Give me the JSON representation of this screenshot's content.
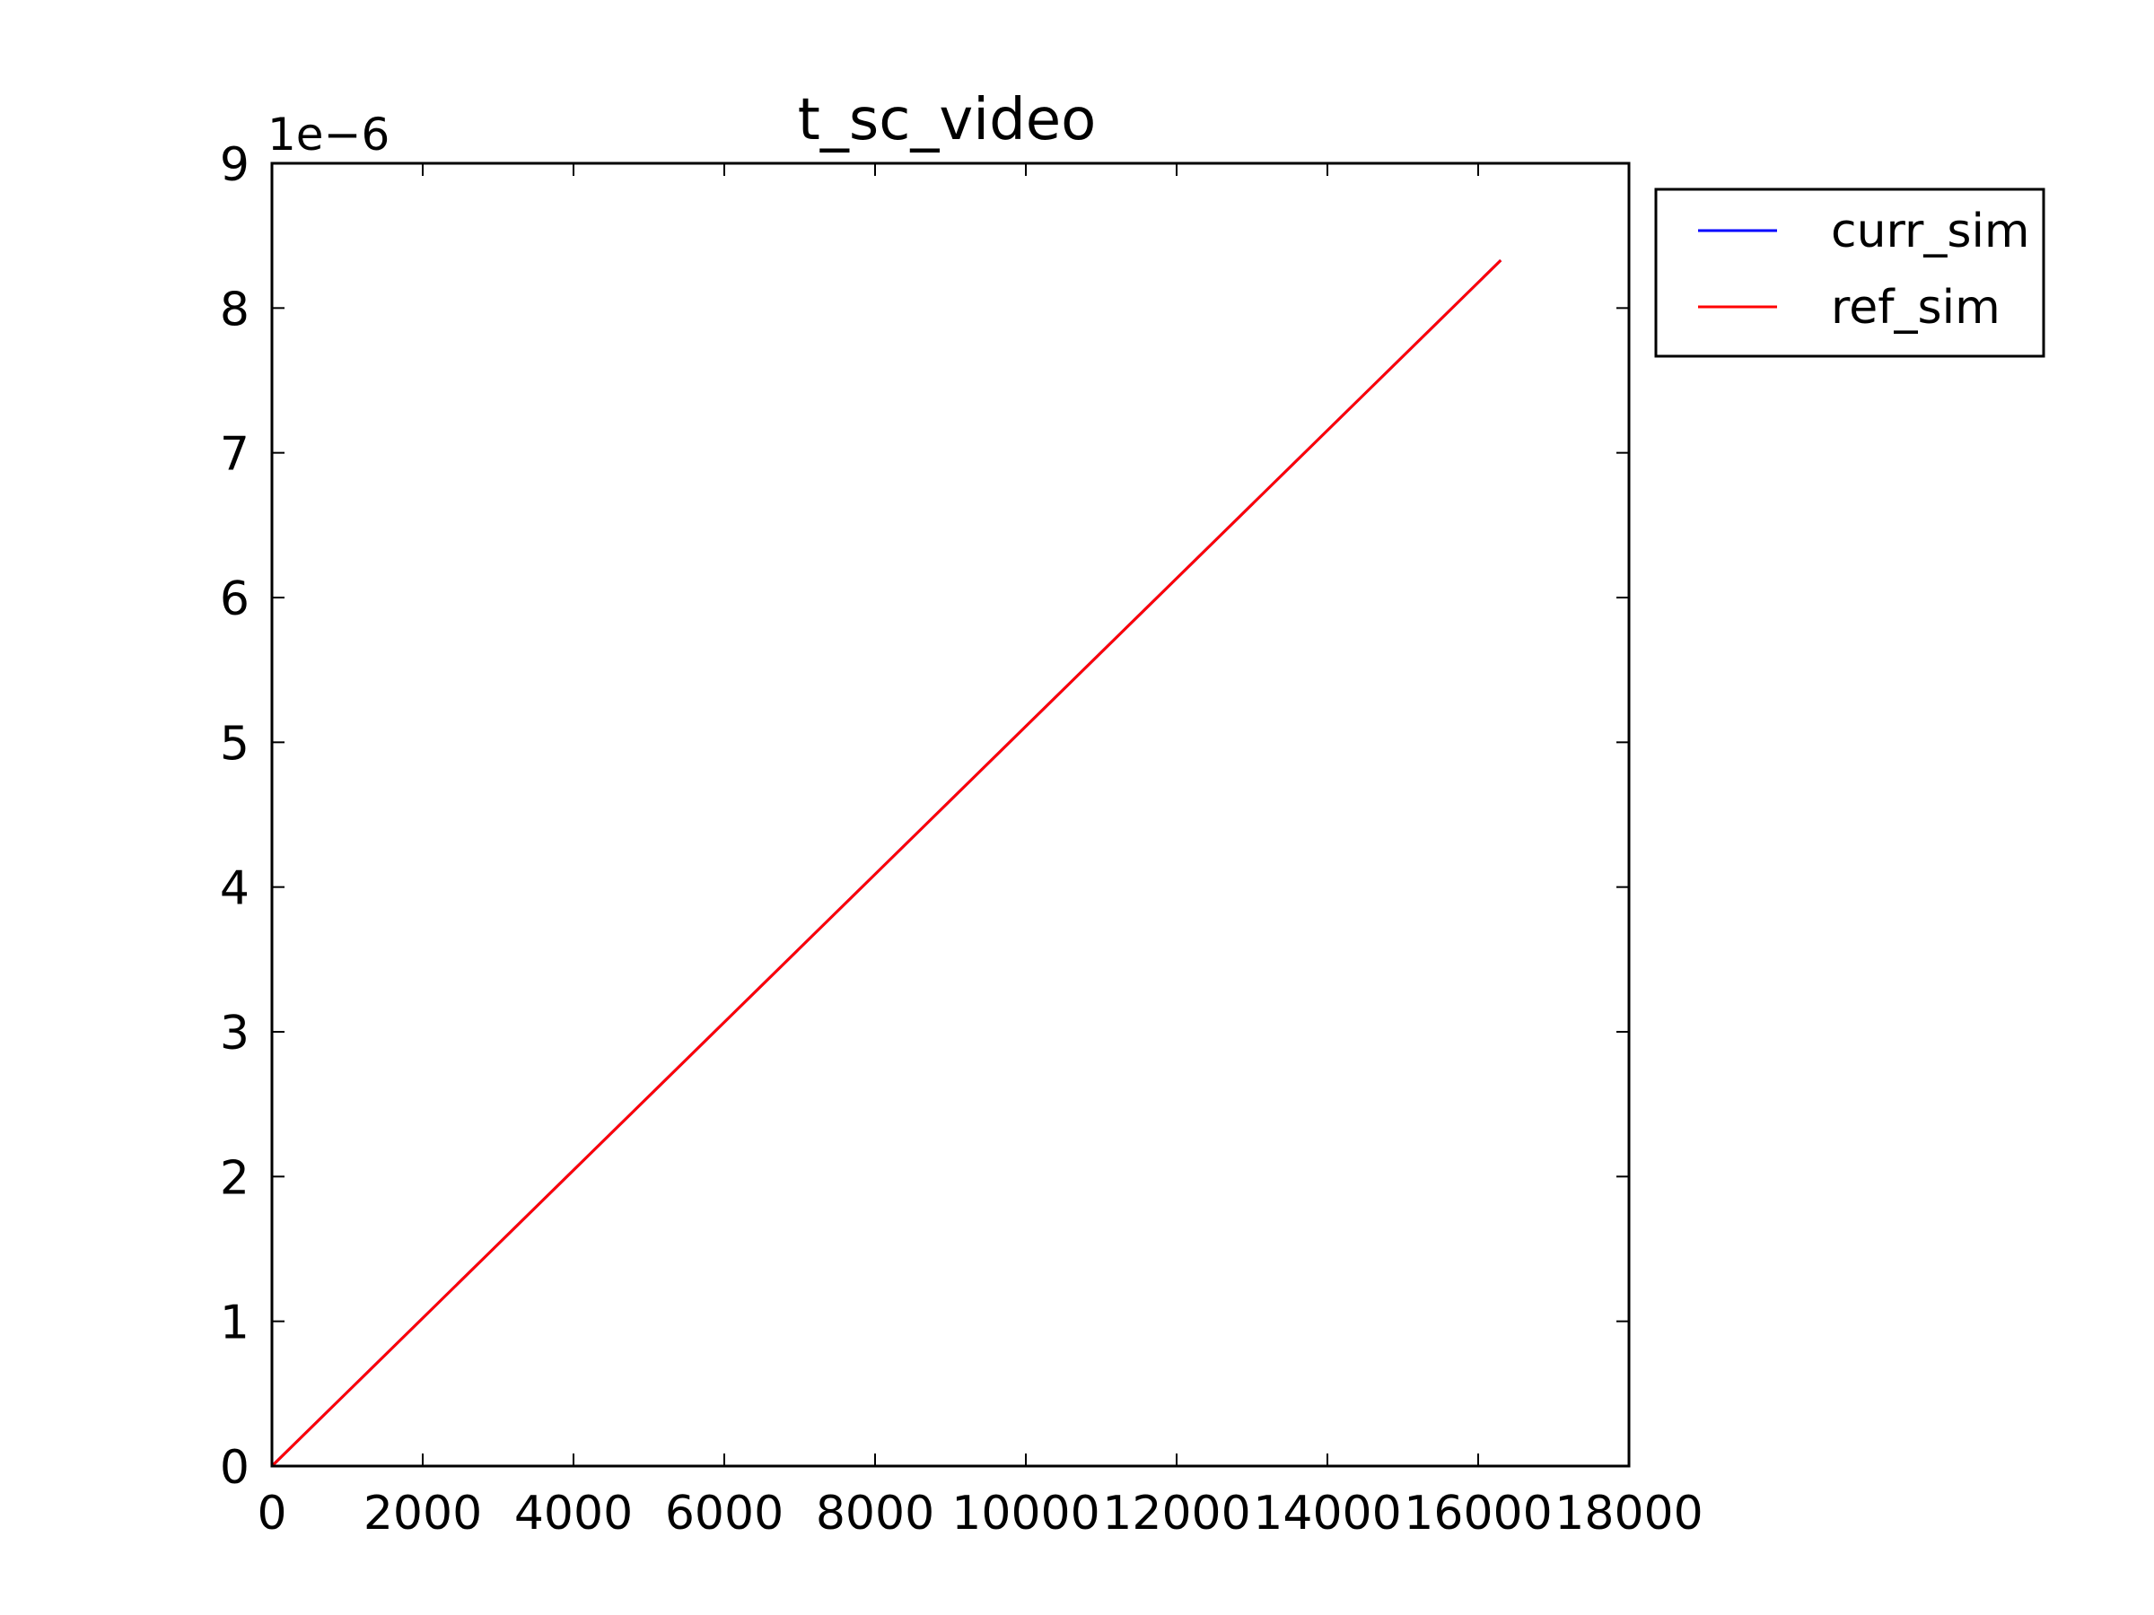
{
  "chart_data": {
    "type": "line",
    "title": "t_sc_video",
    "xlabel": "",
    "ylabel": "",
    "xlim": [
      0,
      18000
    ],
    "ylim": [
      0,
      9
    ],
    "y_offset_label": "1e−6",
    "x_ticks": [
      "0",
      "2000",
      "4000",
      "6000",
      "8000",
      "10000",
      "12000",
      "14000",
      "16000",
      "18000"
    ],
    "y_ticks": [
      "0",
      "1",
      "2",
      "3",
      "4",
      "5",
      "6",
      "7",
      "8",
      "9"
    ],
    "grid": false,
    "legend_position": "outside-top-right",
    "series": [
      {
        "name": "curr_sim",
        "color": "#0000ff",
        "x": [
          0,
          16300
        ],
        "y": [
          0,
          8.33
        ]
      },
      {
        "name": "ref_sim",
        "color": "#ff0000",
        "x": [
          0,
          16300
        ],
        "y": [
          0,
          8.33
        ]
      }
    ]
  }
}
